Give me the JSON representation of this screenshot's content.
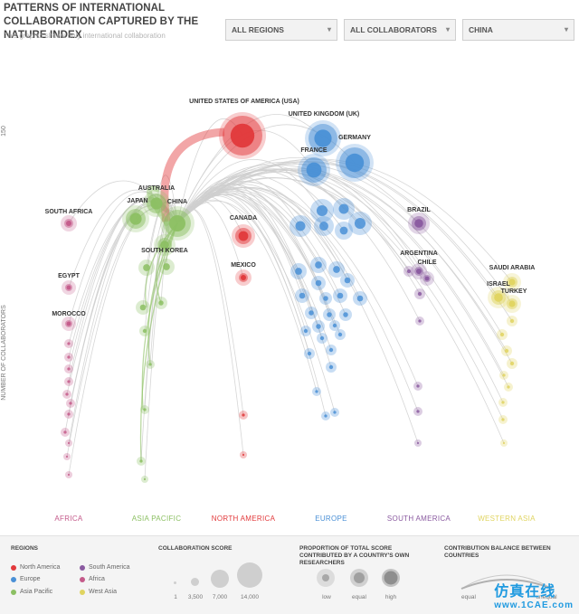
{
  "header": {
    "title": "PATTERNS OF INTERNATIONAL COLLABORATION CAPTURED BY THE NATURE INDEX",
    "subtitle": "This graphic shows only international collaboration"
  },
  "filters": {
    "regions": "ALL REGIONS",
    "collaborators": "ALL COLLABORATORS",
    "country": "CHINA"
  },
  "chart_data": {
    "type": "scatter",
    "yaxis_label": "NUMBER OF COLLABORATORS",
    "y_tick": "150",
    "focus_country": "CHINA",
    "regions": [
      {
        "name": "AFRICA",
        "color": "#c45a8a"
      },
      {
        "name": "ASIA PACIFIC",
        "color": "#8cc063"
      },
      {
        "name": "NORTH AMERICA",
        "color": "#e2393b"
      },
      {
        "name": "EUROPE",
        "color": "#4a90d6"
      },
      {
        "name": "SOUTH AMERICA",
        "color": "#8a5aa0"
      },
      {
        "name": "WESTERN ASIA",
        "color": "#e0d460"
      }
    ],
    "labeled_countries": [
      "UNITED STATES OF AMERICA (USA)",
      "UNITED KINGDOM (UK)",
      "GERMANY",
      "FRANCE",
      "AUSTRALIA",
      "JAPAN",
      "CHINA",
      "SOUTH KOREA",
      "SOUTH AFRICA",
      "EGYPT",
      "MOROCCO",
      "CANADA",
      "MEXICO",
      "BRAZIL",
      "ARGENTINA",
      "CHILE",
      "SAUDI ARABIA",
      "ISRAEL",
      "TURKEY"
    ]
  },
  "legend": {
    "regions_title": "REGIONS",
    "regions": [
      {
        "name": "North America",
        "color": "#e2393b"
      },
      {
        "name": "Europe",
        "color": "#4a90d6"
      },
      {
        "name": "Asia Pacific",
        "color": "#8cc063"
      },
      {
        "name": "South America",
        "color": "#8a5aa0"
      },
      {
        "name": "Africa",
        "color": "#c45a8a"
      },
      {
        "name": "West Asia",
        "color": "#e0d460"
      }
    ],
    "score_title": "COLLABORATION SCORE",
    "score_values": [
      "1",
      "3,500",
      "7,000",
      "14,000"
    ],
    "proportion_title": "PROPORTION OF TOTAL SCORE CONTRIBUTED BY A COUNTRY'S OWN RESEARCHERS",
    "proportion_values": [
      "low",
      "equal",
      "high"
    ],
    "balance_title": "CONTRIBUTION BALANCE BETWEEN COUNTRIES",
    "balance_ends": [
      "equal",
      "unequal"
    ]
  },
  "watermark": {
    "text": "仿真在线",
    "site": "www.1CAE.com"
  }
}
